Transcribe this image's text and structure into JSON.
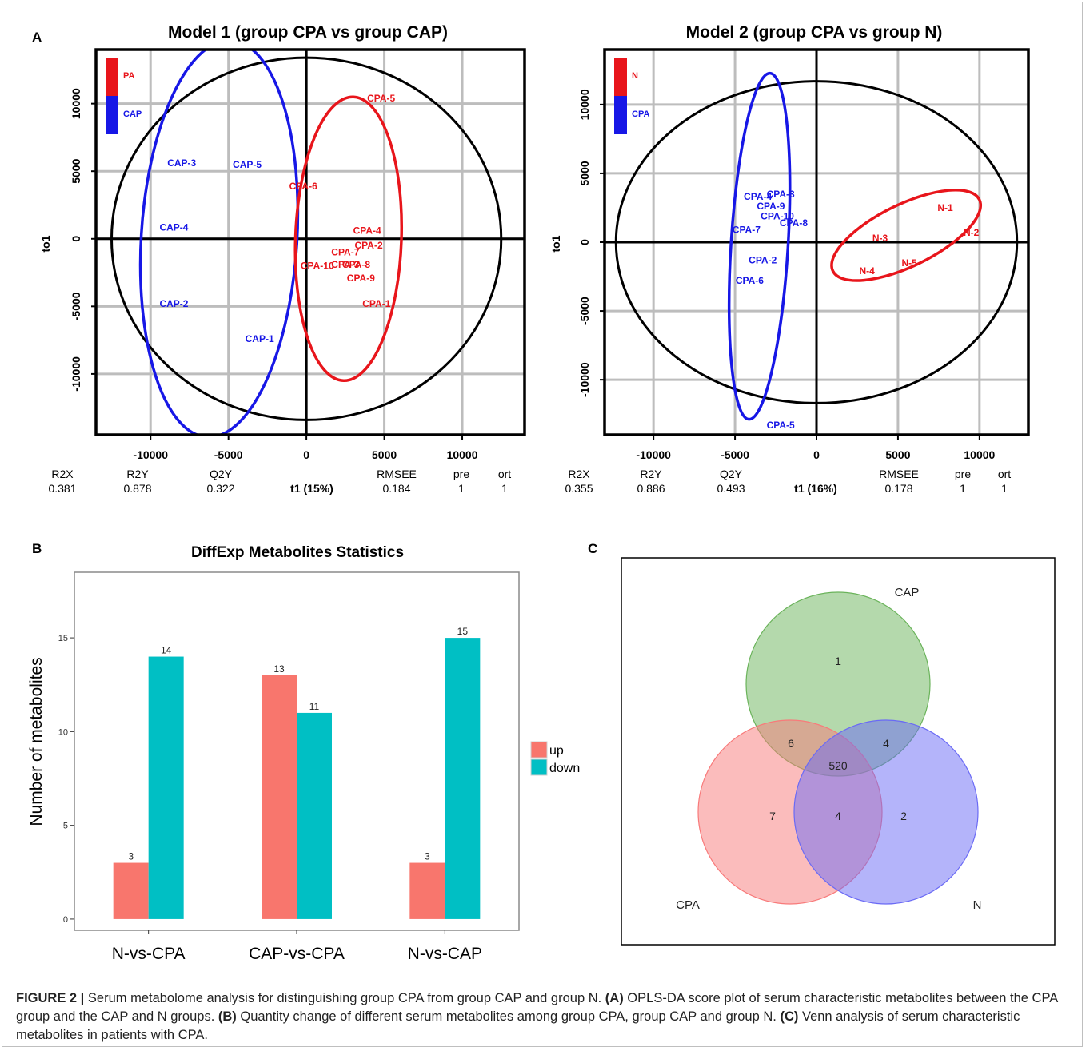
{
  "panel_letters": {
    "a": "A",
    "b": "B",
    "c": "C"
  },
  "chart_data": [
    {
      "type": "scatter",
      "title": "Model 1 (group CPA vs group CAP)",
      "xlabel": "t1 (15%)",
      "ylabel": "to1",
      "xlim": [
        -13500,
        14000
      ],
      "ylim": [
        -14500,
        14000
      ],
      "xticks": [
        -10000,
        -5000,
        0,
        5000,
        10000
      ],
      "yticks": [
        -10000,
        -5000,
        0,
        5000,
        10000
      ],
      "grid": true,
      "legend": {
        "placement": "top-left",
        "entries": [
          {
            "label": "PA",
            "color": "#e8151b"
          },
          {
            "label": "CAP",
            "color": "#1717e6"
          }
        ]
      },
      "confidence_ellipse": {
        "cx": 0,
        "cy": 0,
        "rx": 12500,
        "ry": 13400
      },
      "series": [
        {
          "name": "CAP",
          "color": "#1717e6",
          "ellipse": {
            "cx": -5600,
            "cy": 0,
            "rx": 5000,
            "ry": 14700,
            "angle_deg": 3.5
          },
          "points": [
            {
              "label": "CAP-3",
              "x": -8000,
              "y": 5600
            },
            {
              "label": "CAP-5",
              "x": -3800,
              "y": 5500
            },
            {
              "label": "CAP-4",
              "x": -8500,
              "y": 850
            },
            {
              "label": "CAP-2",
              "x": -8500,
              "y": -4800
            },
            {
              "label": "CAP-1",
              "x": -3000,
              "y": -7400
            }
          ]
        },
        {
          "name": "PA",
          "color": "#e8151b",
          "ellipse": {
            "cx": 2700,
            "cy": 0,
            "rx": 3400,
            "ry": 10500,
            "angle_deg": 2
          },
          "points": [
            {
              "label": "CPA-5",
              "x": 4800,
              "y": 10400
            },
            {
              "label": "CPA-6",
              "x": -200,
              "y": 3900
            },
            {
              "label": "CPA-4",
              "x": 3900,
              "y": 600
            },
            {
              "label": "CPA-2",
              "x": 4000,
              "y": -500
            },
            {
              "label": "CPA-7",
              "x": 2500,
              "y": -1000
            },
            {
              "label": "CPA-3",
              "x": 2500,
              "y": -1900
            },
            {
              "label": "CPA-8",
              "x": 3200,
              "y": -1900
            },
            {
              "label": "CPA-10",
              "x": 700,
              "y": -2000
            },
            {
              "label": "CPA-9",
              "x": 3500,
              "y": -2900
            },
            {
              "label": "CPA-1",
              "x": 4500,
              "y": -4800
            }
          ]
        }
      ],
      "stats": {
        "R2X": "0.381",
        "R2Y": "0.878",
        "Q2Y": "0.322",
        "RMSEE": "0.184",
        "pre": "1",
        "ort": "1"
      }
    },
    {
      "type": "scatter",
      "title": "Model 2 (group CPA vs group N)",
      "xlabel": "t1 (16%)",
      "ylabel": "to1",
      "xlim": [
        -13000,
        13000
      ],
      "ylim": [
        -14000,
        14000
      ],
      "xticks": [
        -10000,
        -5000,
        0,
        5000,
        10000
      ],
      "yticks": [
        -10000,
        -5000,
        0,
        5000,
        10000
      ],
      "grid": true,
      "legend": {
        "placement": "top-left",
        "entries": [
          {
            "label": "N",
            "color": "#e8151b"
          },
          {
            "label": "CPA",
            "color": "#1717e6"
          }
        ]
      },
      "confidence_ellipse": {
        "cx": 0,
        "cy": 0,
        "rx": 12300,
        "ry": 11700
      },
      "series": [
        {
          "name": "CPA",
          "color": "#1717e6",
          "ellipse": {
            "cx": -3500,
            "cy": -300,
            "rx": 1750,
            "ry": 12600,
            "angle_deg": 3.5
          },
          "points": [
            {
              "label": "CPA-4",
              "x": -3600,
              "y": 3300
            },
            {
              "label": "CPA-3",
              "x": -2200,
              "y": 3500
            },
            {
              "label": "CPA-9",
              "x": -2800,
              "y": 2600
            },
            {
              "label": "CPA-10",
              "x": -2400,
              "y": 1900
            },
            {
              "label": "CPA-8",
              "x": -1400,
              "y": 1400
            },
            {
              "label": "CPA-7",
              "x": -4300,
              "y": 900
            },
            {
              "label": "CPA-2",
              "x": -3300,
              "y": -1300
            },
            {
              "label": "CPA-6",
              "x": -4100,
              "y": -2800
            },
            {
              "label": "CPA-5",
              "x": -2200,
              "y": -13300
            }
          ]
        },
        {
          "name": "N",
          "color": "#e8151b",
          "ellipse": {
            "cx": 5500,
            "cy": 500,
            "rx": 5000,
            "ry": 2250,
            "angle_deg": -26
          },
          "points": [
            {
              "label": "N-1",
              "x": 7900,
              "y": 2500
            },
            {
              "label": "N-2",
              "x": 9500,
              "y": 700
            },
            {
              "label": "N-3",
              "x": 3900,
              "y": 300
            },
            {
              "label": "N-5",
              "x": 5700,
              "y": -1500
            },
            {
              "label": "N-4",
              "x": 3100,
              "y": -2100
            }
          ]
        }
      ],
      "stats": {
        "R2X": "0.355",
        "R2Y": "0.886",
        "Q2Y": "0.493",
        "RMSEE": "0.178",
        "pre": "1",
        "ort": "1"
      }
    },
    {
      "type": "bar",
      "title": "DiffExp Metabolites Statistics",
      "xlabel": "",
      "ylabel": "Number of metabolites",
      "categories": [
        "N-vs-CPA",
        "CAP-vs-CPA",
        "N-vs-CAP"
      ],
      "series": [
        {
          "name": "up",
          "color": "#f8766d",
          "values": [
            3,
            13,
            3
          ]
        },
        {
          "name": "down",
          "color": "#00bfc4",
          "values": [
            14,
            11,
            15
          ]
        }
      ],
      "ylim": [
        -0.6,
        18.5
      ],
      "yticks": [
        0,
        5,
        10,
        15
      ],
      "grid": false,
      "legend": {
        "placement": "right"
      }
    },
    {
      "type": "venn",
      "sets": [
        {
          "name": "CAP",
          "color": "#6ab35a"
        },
        {
          "name": "CPA",
          "color": "#f87a7a"
        },
        {
          "name": "N",
          "color": "#6a6af5"
        }
      ],
      "regions": [
        {
          "sets": [
            "CAP"
          ],
          "value": 1
        },
        {
          "sets": [
            "CPA"
          ],
          "value": 7
        },
        {
          "sets": [
            "N"
          ],
          "value": 2
        },
        {
          "sets": [
            "CAP",
            "CPA"
          ],
          "value": 6
        },
        {
          "sets": [
            "CAP",
            "N"
          ],
          "value": 4
        },
        {
          "sets": [
            "CPA",
            "N"
          ],
          "value": 4
        },
        {
          "sets": [
            "CAP",
            "CPA",
            "N"
          ],
          "value": 520
        }
      ]
    }
  ],
  "caption": {
    "figure_label": "FIGURE 2 |",
    "lead": "Serum metabolome analysis for distinguishing group CPA from group CAP and group N.",
    "parts": [
      {
        "label": "(A)",
        "text": "OPLS-DA score plot of serum characteristic metabolites between the CPA group and the CAP and N groups."
      },
      {
        "label": "(B)",
        "text": "Quantity change of different serum metabolites among group CPA, group CAP and group N."
      },
      {
        "label": "(C)",
        "text": "Venn analysis of serum characteristic metabolites in patients with CPA."
      }
    ]
  }
}
